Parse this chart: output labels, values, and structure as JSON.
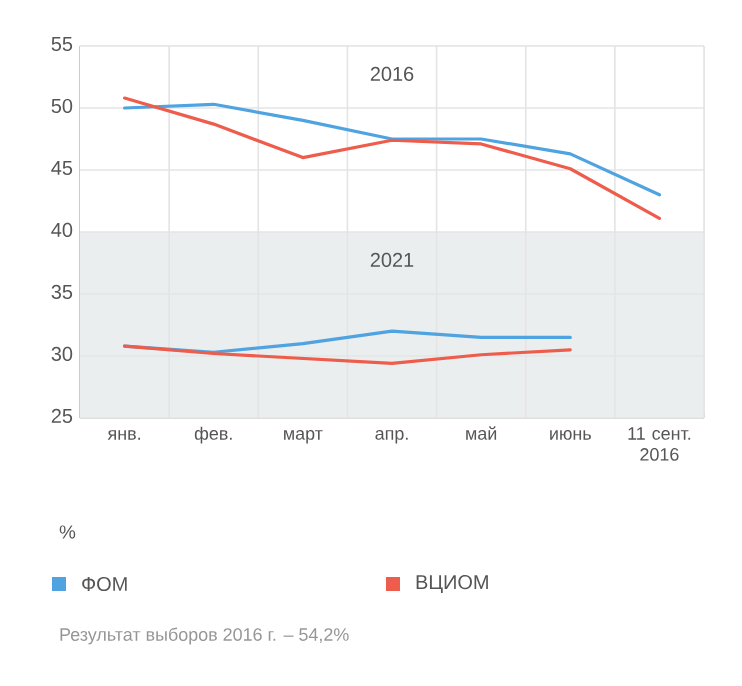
{
  "chart_data": {
    "type": "line",
    "categories": [
      "янв.",
      "фев.",
      "март",
      "апр.",
      "май",
      "июнь",
      "11 сент. 2016"
    ],
    "series": [
      {
        "name": "ФОМ",
        "color": "#4fa3e0",
        "values": [
          50.0,
          50.3,
          49.0,
          47.5,
          47.5,
          46.3,
          43.0
        ]
      },
      {
        "name": "ВЦИОМ",
        "color": "#ee5d4c",
        "values": [
          50.8,
          48.7,
          46.0,
          47.4,
          47.1,
          45.1,
          41.1
        ]
      },
      {
        "color": "#4fa3e0",
        "values": [
          30.8,
          30.3,
          31.0,
          32.0,
          31.5,
          31.5,
          null
        ]
      },
      {
        "color": "#ee5d4c",
        "values": [
          30.8,
          30.2,
          29.8,
          29.4,
          30.1,
          30.5,
          null
        ]
      }
    ],
    "ylim": [
      25,
      55
    ],
    "yticks": [
      25,
      30,
      35,
      40,
      45,
      50,
      55
    ],
    "ylabel": "%",
    "bands": [
      {
        "axis": "y",
        "from": 40,
        "to": 55,
        "label": "2016",
        "color": "#ffffff"
      },
      {
        "axis": "y",
        "from": 25,
        "to": 40,
        "label": "2021",
        "color": "#ebeeef"
      }
    ],
    "grid": true,
    "legend": "bottom",
    "marker": "none",
    "line_style": "solid",
    "annotations": [
      "Результат выборов 2016 г. – 54,2%"
    ]
  }
}
